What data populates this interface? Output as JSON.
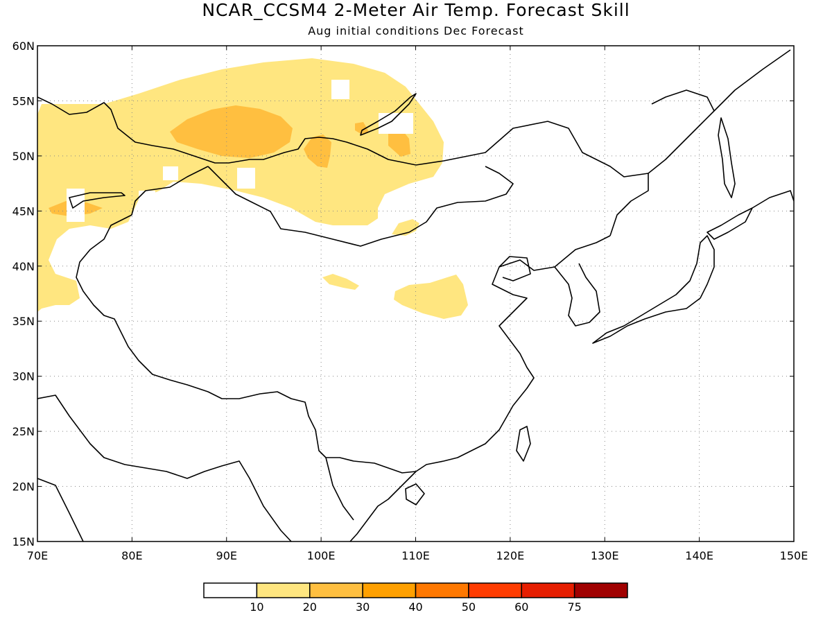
{
  "title": "NCAR_CCSM4 2-Meter Air Temp. Forecast Skill",
  "subtitle": "Aug initial conditions  Dec Forecast",
  "map": {
    "lon_range": [
      70,
      150
    ],
    "lat_range": [
      15,
      60
    ],
    "lat_ticks": [
      {
        "value": 60,
        "label": "60N"
      },
      {
        "value": 55,
        "label": "55N"
      },
      {
        "value": 50,
        "label": "50N"
      },
      {
        "value": 45,
        "label": "45N"
      },
      {
        "value": 40,
        "label": "40N"
      },
      {
        "value": 35,
        "label": "35N"
      },
      {
        "value": 30,
        "label": "30N"
      },
      {
        "value": 25,
        "label": "25N"
      },
      {
        "value": 20,
        "label": "20N"
      },
      {
        "value": 15,
        "label": "15N"
      }
    ],
    "lon_ticks": [
      {
        "value": 70,
        "label": "70E"
      },
      {
        "value": 80,
        "label": "80E"
      },
      {
        "value": 90,
        "label": "90E"
      },
      {
        "value": 100,
        "label": "100E"
      },
      {
        "value": 110,
        "label": "110E"
      },
      {
        "value": 120,
        "label": "120E"
      },
      {
        "value": 130,
        "label": "130E"
      },
      {
        "value": 140,
        "label": "140E"
      },
      {
        "value": 150,
        "label": "150E"
      }
    ],
    "grid": "dotted"
  },
  "colorbar": {
    "colors": [
      "#ffffff",
      "#ffe680",
      "#ffbf40",
      "#ffa000",
      "#ff7800",
      "#ff3c00",
      "#e61e00",
      "#a00000"
    ],
    "labels": [
      "10",
      "20",
      "30",
      "40",
      "50",
      "60",
      "75"
    ]
  },
  "colors": {
    "skill_10_20": "#ffe680",
    "skill_20_30": "#ffbf40",
    "coastline": "#000000"
  }
}
